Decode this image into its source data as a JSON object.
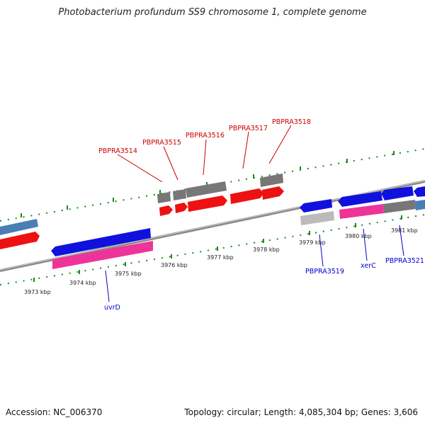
{
  "title": "Photobacterium profundum SS9 chromosome 1, complete genome",
  "footer": {
    "accession": "Accession: NC_006370",
    "topology": "Topology: circular; Length: 4,085,304 bp; Genes: 3,606"
  },
  "scale_ticks": [
    "3973 kbp",
    "3974 kbp",
    "3975 kbp",
    "3976 kbp",
    "3977 kbp",
    "3978 kbp",
    "3979 kbp",
    "3980 kbp",
    "3981 kbp"
  ],
  "gene_labels_forward": [
    "PBPRA3514",
    "PBPRA3515",
    "PBPRA3516",
    "PBPRA3517",
    "PBPRA3518"
  ],
  "gene_labels_reverse": [
    "uvrD",
    "PBPRA3519",
    "xerC",
    "PBPRA3521"
  ],
  "colors": {
    "forward_label": "#cc0000",
    "reverse_label": "#0000cc",
    "forward_gene": "#ee1111",
    "reverse_gene": "#1111dd",
    "cds": "#ee3399",
    "pseudo": "#777777",
    "tick": "#1a8a1a",
    "backbone": "#8a8a8a"
  }
}
